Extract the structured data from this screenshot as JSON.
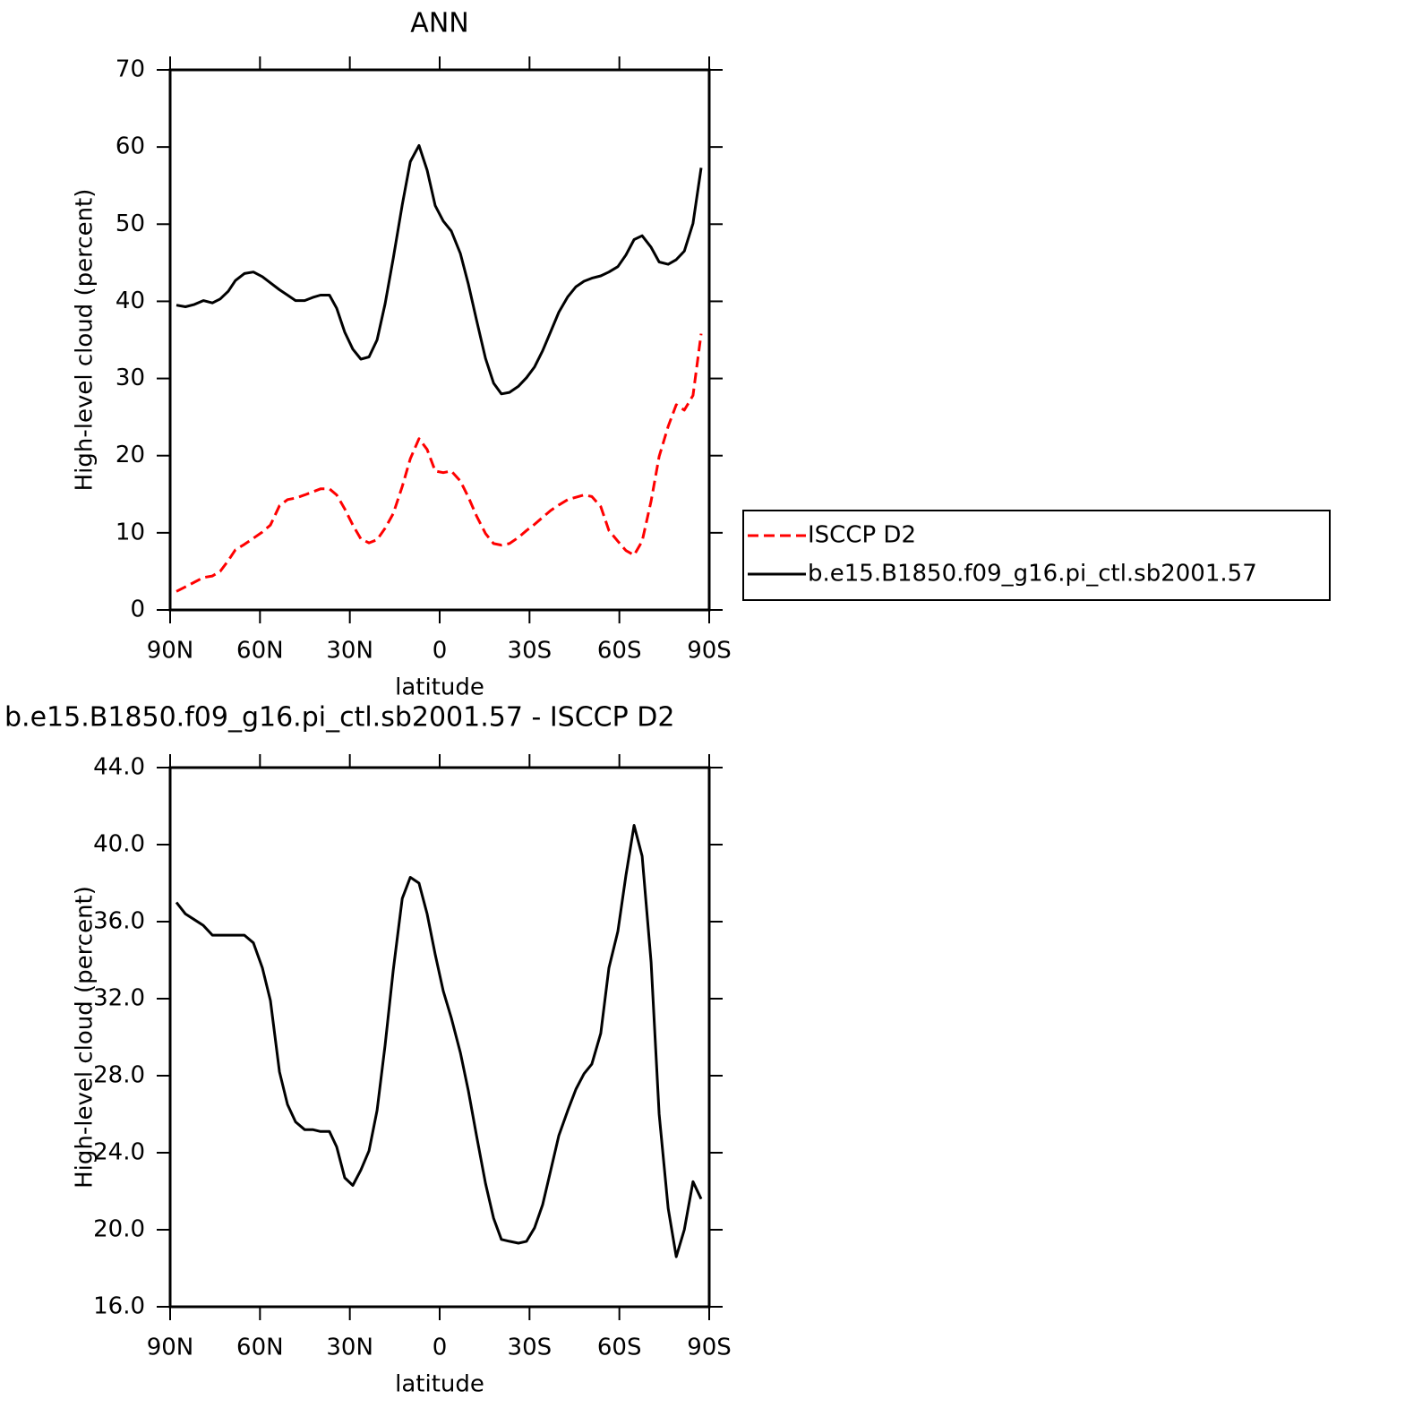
{
  "chart_data": [
    {
      "type": "line",
      "title": "ANN",
      "xlabel": "latitude",
      "ylabel": "High-level cloud (percent)",
      "x": [
        87.9,
        84.9,
        81.9,
        78.9,
        75.9,
        73.3,
        70.6,
        68.2,
        65.2,
        62.2,
        59.2,
        56.5,
        53.5,
        50.8,
        48.1,
        45.1,
        42.4,
        39.8,
        36.8,
        34.4,
        31.7,
        29.0,
        26.3,
        23.6,
        20.9,
        18.2,
        15.5,
        12.5,
        9.8,
        6.9,
        4.2,
        1.5,
        -1.2,
        -3.9,
        -6.9,
        -9.6,
        -12.3,
        -15.3,
        -18.0,
        -20.6,
        -23.3,
        -26.3,
        -29.0,
        -31.7,
        -34.4,
        -37.1,
        -39.8,
        -42.8,
        -45.5,
        -48.2,
        -50.8,
        -53.8,
        -56.5,
        -59.5,
        -62.2,
        -64.9,
        -67.6,
        -70.6,
        -73.3,
        -76.3,
        -79.0,
        -81.7,
        -84.6,
        -87.3
      ],
      "xlim": [
        90,
        -90
      ],
      "xticks": [
        {
          "value": 90,
          "label": "90N"
        },
        {
          "value": 60,
          "label": "60N"
        },
        {
          "value": 30,
          "label": "30N"
        },
        0,
        {
          "value": -30,
          "label": "30S"
        },
        {
          "value": -60,
          "label": "60S"
        },
        {
          "value": -90,
          "label": "90S"
        }
      ],
      "ylim": [
        0,
        70
      ],
      "yticks": [
        0,
        10,
        20,
        30,
        40,
        50,
        60,
        70
      ],
      "legend": "right",
      "series": [
        {
          "name": "ISCCP D2",
          "color": "#ff0000",
          "dash": "dashed",
          "values": [
            2.4,
            3.0,
            3.6,
            4.2,
            4.4,
            5.0,
            6.4,
            7.8,
            8.5,
            9.3,
            10.1,
            11.0,
            13.5,
            14.3,
            14.5,
            14.9,
            15.3,
            15.7,
            15.7,
            14.9,
            13.1,
            11.0,
            9.2,
            8.7,
            9.1,
            10.6,
            12.5,
            16.0,
            19.6,
            22.2,
            20.8,
            18.0,
            17.8,
            18.0,
            16.7,
            14.6,
            12.2,
            9.9,
            8.6,
            8.4,
            8.6,
            9.4,
            10.3,
            11.1,
            12.0,
            12.9,
            13.6,
            14.3,
            14.6,
            14.9,
            14.7,
            13.4,
            10.3,
            8.9,
            7.7,
            7.1,
            8.9,
            14.1,
            19.9,
            23.8,
            26.6,
            25.9,
            27.8,
            35.8
          ]
        },
        {
          "name": "b.e15.B1850.f09_g16.pi_ctl.sb2001.57",
          "color": "#000000",
          "dash": "solid",
          "values": [
            39.5,
            39.3,
            39.6,
            40.1,
            39.8,
            40.3,
            41.3,
            42.7,
            43.6,
            43.8,
            43.2,
            42.4,
            41.5,
            40.8,
            40.1,
            40.1,
            40.5,
            40.8,
            40.8,
            39.1,
            36.0,
            33.8,
            32.5,
            32.8,
            35.0,
            39.7,
            45.6,
            52.5,
            58.1,
            60.2,
            57.0,
            52.4,
            50.4,
            49.1,
            46.2,
            42.2,
            37.6,
            32.6,
            29.4,
            28.0,
            28.2,
            29.0,
            30.1,
            31.5,
            33.6,
            36.1,
            38.6,
            40.6,
            41.9,
            42.6,
            43.0,
            43.3,
            43.8,
            44.5,
            46.0,
            48.0,
            48.5,
            47.0,
            45.1,
            44.8,
            45.4,
            46.5,
            50.1,
            57.3
          ]
        }
      ]
    },
    {
      "type": "line",
      "title": "b.e15.B1850.f09_g16.pi_ctl.sb2001.57 - ISCCP D2",
      "xlabel": "latitude",
      "ylabel": "High-level cloud (percent)",
      "x": [
        87.9,
        84.9,
        81.9,
        78.9,
        75.9,
        73.3,
        70.6,
        68.2,
        65.2,
        62.2,
        59.2,
        56.5,
        53.5,
        50.8,
        48.1,
        45.1,
        42.4,
        39.8,
        36.8,
        34.4,
        31.7,
        29.0,
        26.3,
        23.6,
        20.9,
        18.2,
        15.5,
        12.5,
        9.8,
        6.9,
        4.2,
        1.5,
        -1.2,
        -3.9,
        -6.9,
        -9.6,
        -12.3,
        -15.3,
        -18.0,
        -20.6,
        -23.3,
        -26.3,
        -29.0,
        -31.7,
        -34.4,
        -37.1,
        -39.8,
        -42.8,
        -45.5,
        -48.2,
        -50.8,
        -53.8,
        -56.5,
        -59.5,
        -62.2,
        -64.9,
        -67.6,
        -70.6,
        -73.3,
        -76.3,
        -79.0,
        -81.7,
        -84.6,
        -87.3
      ],
      "xlim": [
        90,
        -90
      ],
      "xticks": [
        {
          "value": 90,
          "label": "90N"
        },
        {
          "value": 60,
          "label": "60N"
        },
        {
          "value": 30,
          "label": "30N"
        },
        0,
        {
          "value": -30,
          "label": "30S"
        },
        {
          "value": -60,
          "label": "60S"
        },
        {
          "value": -90,
          "label": "90S"
        }
      ],
      "ylim": [
        16,
        44
      ],
      "yticks": [
        {
          "value": 16,
          "label": "16.0"
        },
        {
          "value": 20,
          "label": "20.0"
        },
        {
          "value": 24,
          "label": "24.0"
        },
        {
          "value": 28,
          "label": "28.0"
        },
        {
          "value": 32,
          "label": "32.0"
        },
        {
          "value": 36,
          "label": "36.0"
        },
        {
          "value": 40,
          "label": "40.0"
        },
        {
          "value": 44,
          "label": "44.0"
        }
      ],
      "color": "#000000",
      "values": [
        37.0,
        36.4,
        36.1,
        35.8,
        35.3,
        35.3,
        35.3,
        35.3,
        35.3,
        34.9,
        33.6,
        31.9,
        28.2,
        26.5,
        25.6,
        25.2,
        25.2,
        25.1,
        25.1,
        24.3,
        22.7,
        22.3,
        23.1,
        24.1,
        26.2,
        29.6,
        33.5,
        37.2,
        38.3,
        38.0,
        36.4,
        34.3,
        32.4,
        31.0,
        29.2,
        27.2,
        24.9,
        22.4,
        20.6,
        19.5,
        19.4,
        19.3,
        19.4,
        20.1,
        21.3,
        23.1,
        24.9,
        26.2,
        27.3,
        28.1,
        28.6,
        30.2,
        33.6,
        35.5,
        38.4,
        41.0,
        39.4,
        33.9,
        26.0,
        21.1,
        18.6,
        20.0,
        22.5,
        21.6
      ]
    }
  ]
}
